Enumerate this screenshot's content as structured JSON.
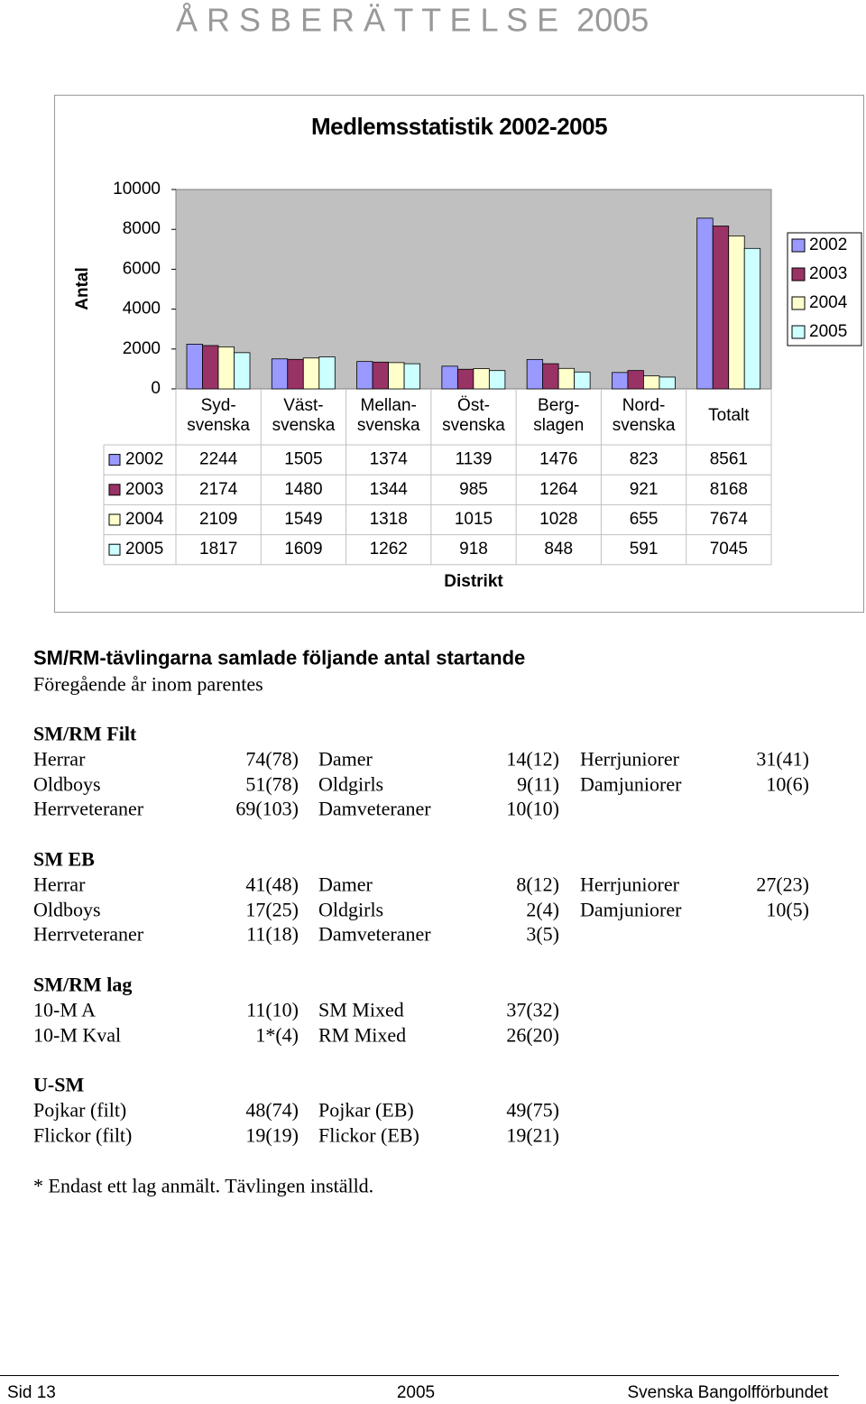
{
  "header": {
    "title": "Å R S B E R Ä T T E L S E  2005"
  },
  "chart_data": {
    "type": "bar",
    "title": "Medlemsstatistik 2002-2005",
    "y_label": "Antal",
    "x_label": "Distrikt",
    "categories": [
      "Syd-\nsvenska",
      "Väst-\nsvenska",
      "Mellan-\nsvenska",
      "Öst-\nsvenska",
      "Berg-\nslagen",
      "Nord-\nsvenska",
      "Totalt"
    ],
    "series": [
      {
        "name": "2002",
        "color": "#9999ff",
        "values": [
          2244,
          1505,
          1374,
          1139,
          1476,
          823,
          8561
        ]
      },
      {
        "name": "2003",
        "color": "#993366",
        "values": [
          2174,
          1480,
          1344,
          985,
          1264,
          921,
          8168
        ]
      },
      {
        "name": "2004",
        "color": "#ffffcc",
        "values": [
          2109,
          1549,
          1318,
          1015,
          1028,
          655,
          7674
        ]
      },
      {
        "name": "2005",
        "color": "#ccffff",
        "values": [
          1817,
          1609,
          1262,
          918,
          848,
          591,
          7045
        ]
      }
    ],
    "ylim": [
      0,
      10000
    ],
    "yticks": [
      0,
      2000,
      4000,
      6000,
      8000,
      10000
    ],
    "legend": "right",
    "plot_background": "#c0c0c0"
  },
  "intro": {
    "heading": "SM/RM-tävlingarna samlade följande antal startande",
    "subheading": "Föregående år inom parentes"
  },
  "sections": [
    {
      "title": "SM/RM Filt",
      "rows": [
        [
          [
            "Herrar",
            "74(78)"
          ],
          [
            "Damer",
            "14(12)"
          ],
          [
            "Herrjuniorer",
            "31(41)"
          ]
        ],
        [
          [
            "Oldboys",
            "51(78)"
          ],
          [
            "Oldgirls",
            "9(11)"
          ],
          [
            "Damjuniorer",
            "10(6)"
          ]
        ],
        [
          [
            "Herrveteraner",
            "69(103)"
          ],
          [
            "Damveteraner",
            "10(10)"
          ]
        ]
      ]
    },
    {
      "title": "SM EB",
      "rows": [
        [
          [
            "Herrar",
            "41(48)"
          ],
          [
            "Damer",
            "8(12)"
          ],
          [
            "Herrjuniorer",
            "27(23)"
          ]
        ],
        [
          [
            "Oldboys",
            "17(25)"
          ],
          [
            "Oldgirls",
            "2(4)"
          ],
          [
            "Damjuniorer",
            "10(5)"
          ]
        ],
        [
          [
            "Herrveteraner",
            "11(18)"
          ],
          [
            "Damveteraner",
            "3(5)"
          ]
        ]
      ]
    },
    {
      "title": "SM/RM lag",
      "rows": [
        [
          [
            "10-M A",
            "11(10)"
          ],
          [
            "SM Mixed",
            "37(32)"
          ]
        ],
        [
          [
            "10-M Kval",
            "1*(4)"
          ],
          [
            "RM Mixed",
            "26(20)"
          ]
        ]
      ]
    },
    {
      "title": "U-SM",
      "rows": [
        [
          [
            "Pojkar (filt)",
            "48(74)"
          ],
          [
            "Pojkar (EB)",
            "49(75)"
          ]
        ],
        [
          [
            "Flickor (filt)",
            "19(19)"
          ],
          [
            "Flickor (EB)",
            "19(21)"
          ]
        ]
      ]
    }
  ],
  "footnote": "* Endast ett lag anmält. Tävlingen inställd.",
  "footer": {
    "left": "Sid 13",
    "center": "2005",
    "right": "Svenska Bangolfförbundet"
  }
}
